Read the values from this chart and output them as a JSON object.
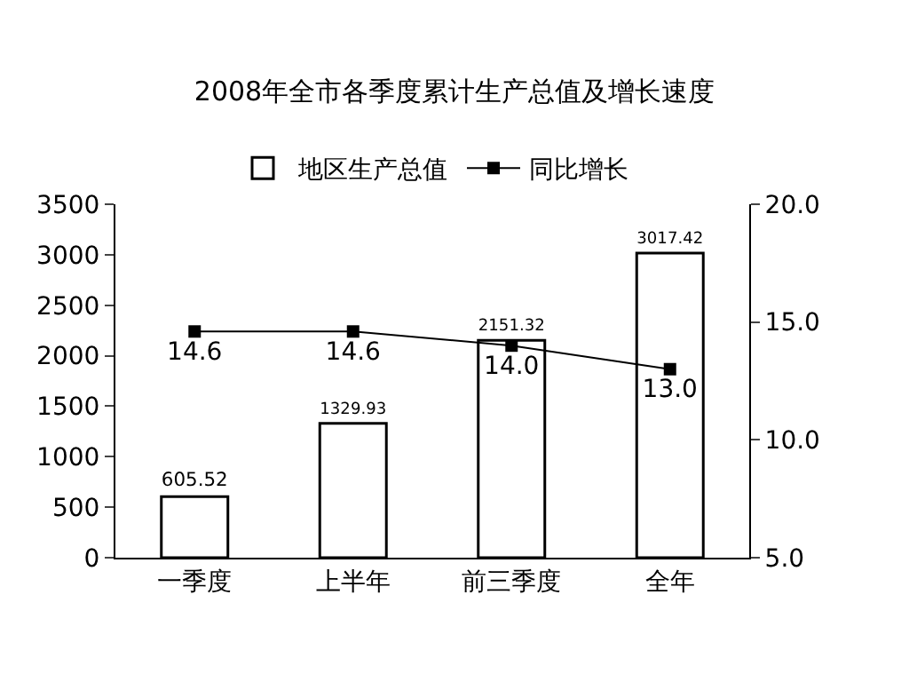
{
  "chart_data": {
    "type": "bar",
    "title": "2008年全市各季度累计生产总值及增长速度",
    "categories": [
      "一季度",
      "上半年",
      "前三季度",
      "全年"
    ],
    "series": [
      {
        "name": "地区生产总值",
        "color": "#ffffff",
        "values": [
          605.52,
          1329.93,
          2151.32,
          3017.42
        ],
        "value_labels": [
          "605.52",
          "1329.93",
          "2151.32",
          "3017.42"
        ]
      },
      {
        "name": "同比增长",
        "type": "line",
        "axis": "y2",
        "color": "#000000",
        "values": [
          14.6,
          14.6,
          14.0,
          13.0
        ],
        "value_labels": [
          "14.6",
          "14.6",
          "14.0",
          "13.0"
        ]
      }
    ],
    "ylim": [
      0,
      3500
    ],
    "yticks": [
      0,
      500,
      1000,
      1500,
      2000,
      2500,
      3000,
      3500
    ],
    "y2lim": [
      5,
      20
    ],
    "y2ticks": [
      {
        "value": 5,
        "label": "5.0"
      },
      {
        "value": 10,
        "label": "10.0"
      },
      {
        "value": 15,
        "label": "15.0"
      },
      {
        "value": 20,
        "label": "20.0"
      }
    ],
    "legend": "top",
    "marker": "square",
    "line_style": "solid"
  }
}
